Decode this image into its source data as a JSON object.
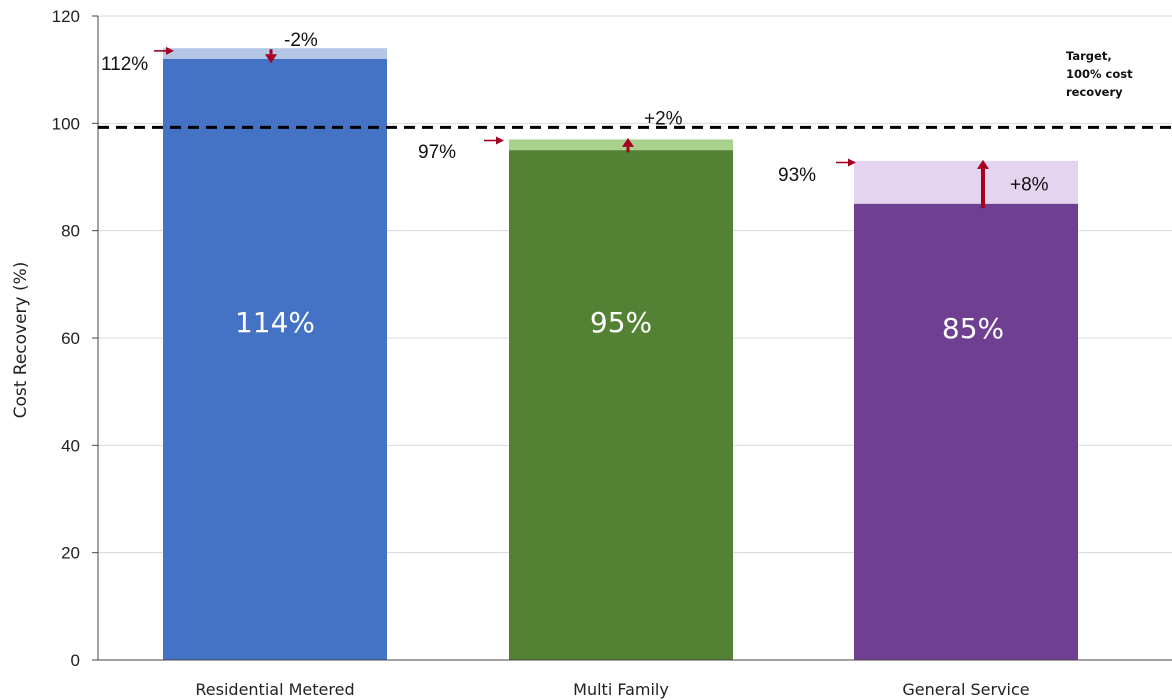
{
  "chart_data": {
    "type": "bar",
    "ylabel": "Cost Recovery (%)",
    "xlabel": "",
    "ylim": [
      0,
      120
    ],
    "yticks": [
      0,
      20,
      40,
      60,
      80,
      100,
      120
    ],
    "grid": true,
    "categories": [
      "Residential Metered",
      "Multi Family",
      "General Service"
    ],
    "current_values": [
      114,
      95,
      85
    ],
    "current_labels": [
      "114%",
      "95%",
      "85%"
    ],
    "proposed_values": [
      112,
      97,
      93
    ],
    "proposed_labels": [
      "112%",
      "97%",
      "93%"
    ],
    "change_labels": [
      "-2%",
      "+2%",
      "+8%"
    ],
    "bar_colors": [
      "#4472C4",
      "#548235",
      "#6F3F92"
    ],
    "light_colors": [
      "#B4C7E7",
      "#A9D18E",
      "#E4D4EF"
    ],
    "arrow_color": "#A50021",
    "target": {
      "value": 100,
      "label_lines": [
        "Target,",
        "100% cost",
        "recovery"
      ]
    }
  }
}
